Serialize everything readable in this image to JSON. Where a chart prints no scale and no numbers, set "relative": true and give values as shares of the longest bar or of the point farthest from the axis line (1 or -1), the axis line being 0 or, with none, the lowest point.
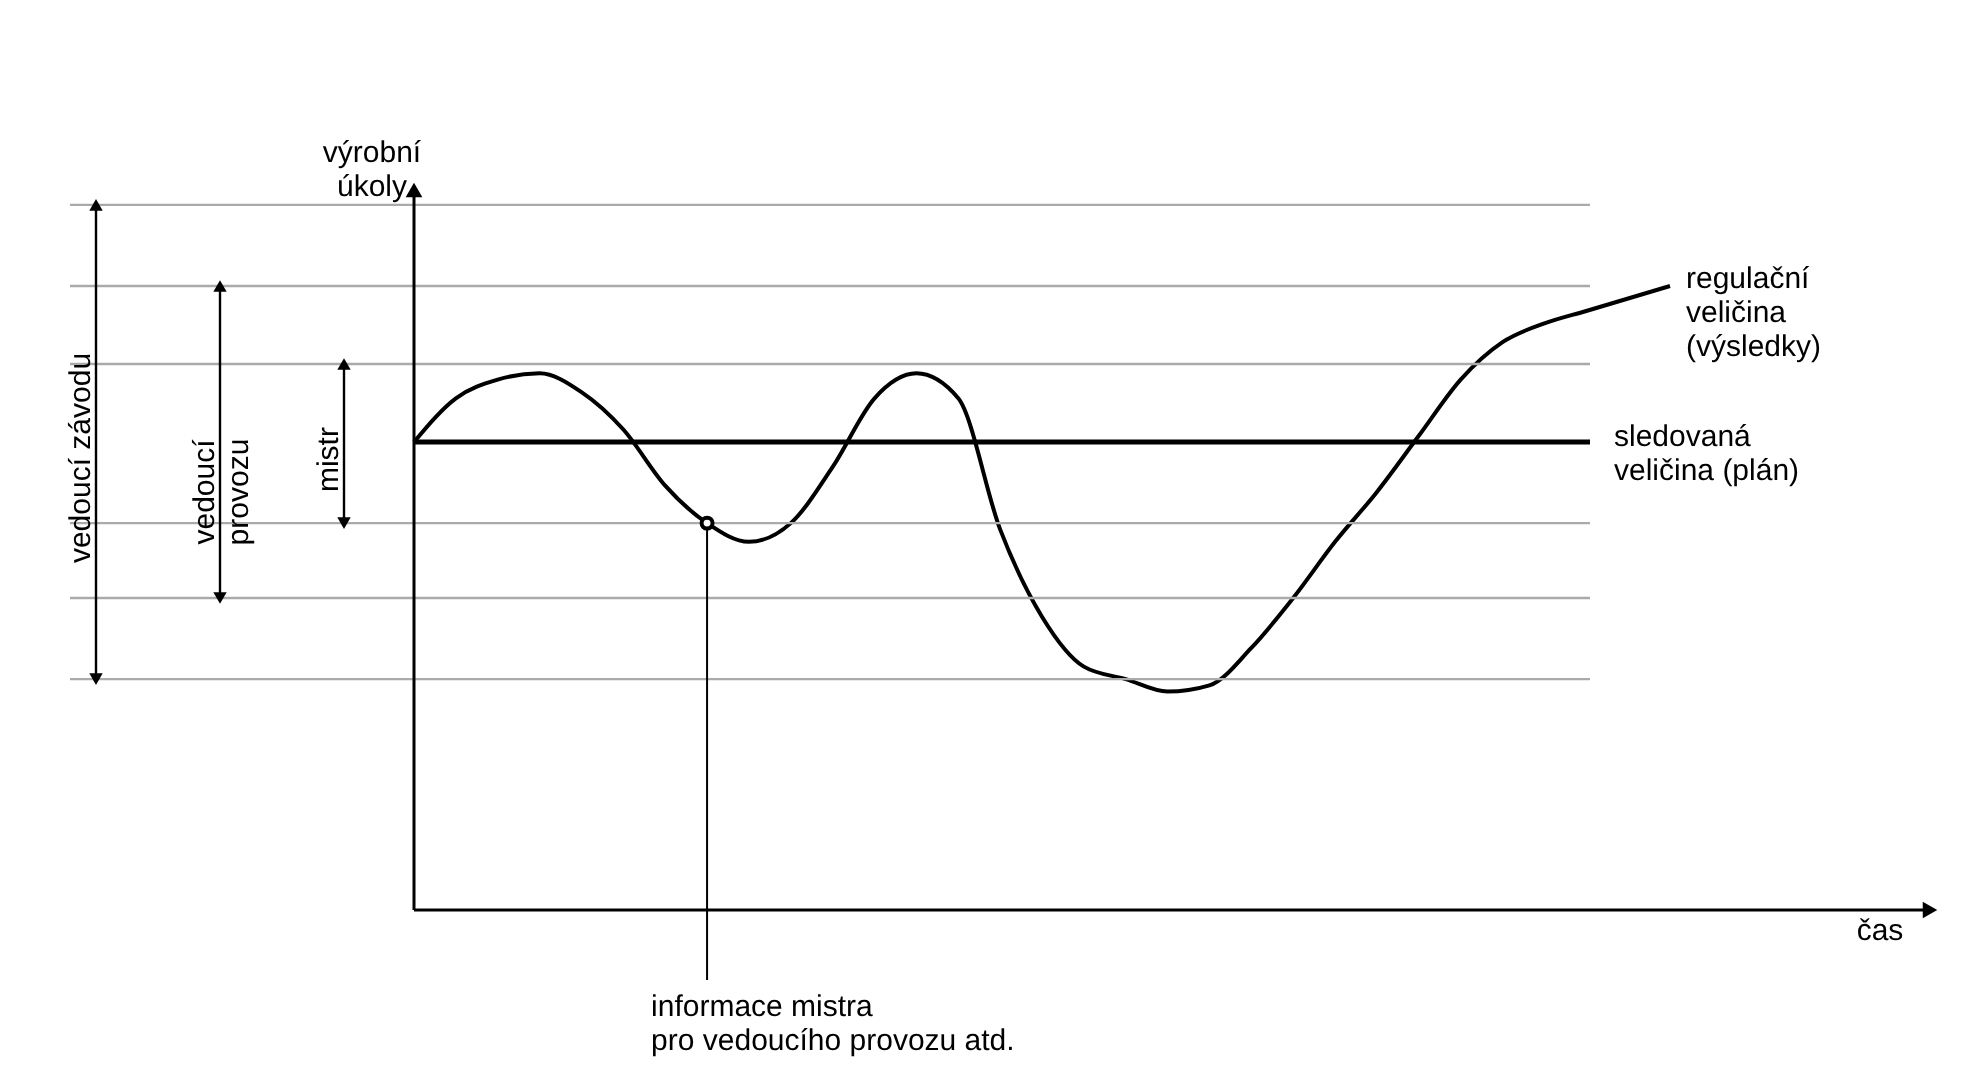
{
  "chart_data": {
    "type": "line",
    "relative": true,
    "line_style": "solid",
    "ylabel": "výrobní\núkoly",
    "categories": [
      null,
      null,
      null,
      null,
      null,
      null,
      null,
      null,
      null,
      null,
      null,
      null,
      null,
      null,
      null,
      null,
      null,
      null,
      null,
      null,
      null,
      null,
      null,
      null,
      null,
      null,
      null,
      null,
      null,
      null,
      null
    ],
    "series": [
      {
        "name": "regulační\nveličina\n(výsledky)",
        "color": "#000000",
        "values": [
          0.75,
          0.82,
          0.85,
          0.86,
          0.83,
          0.77,
          0.68,
          0.62,
          0.59,
          0.62,
          0.71,
          0.82,
          0.86,
          0.82,
          0.61,
          0.47,
          0.39,
          0.37,
          0.35,
          0.36,
          0.42,
          0.5,
          0.59,
          0.67,
          0.76,
          0.85,
          0.91,
          0.94,
          0.96,
          0.98,
          1
        ]
      }
    ],
    "ref_lines": [
      {
        "axis": "y",
        "value": 1.13,
        "color": "#aaaaaa"
      },
      {
        "axis": "y",
        "value": 1.0,
        "color": "#aaaaaa"
      },
      {
        "axis": "y",
        "value": 0.875,
        "color": "#aaaaaa"
      },
      {
        "axis": "y",
        "value": 0.75,
        "color": "#000000",
        "label": "sledovaná\nveličina (plán)"
      },
      {
        "axis": "y",
        "value": 0.62,
        "color": "#aaaaaa"
      },
      {
        "axis": "y",
        "value": 0.5,
        "color": "#aaaaaa"
      },
      {
        "axis": "y",
        "value": 0.37,
        "color": "#aaaaaa"
      }
    ],
    "annotations": [
      "čas",
      "vedoucí závodu",
      "vedoucí\nprovozu",
      "mistr",
      "informace mistra\npro vedoucího provozu atd."
    ]
  }
}
